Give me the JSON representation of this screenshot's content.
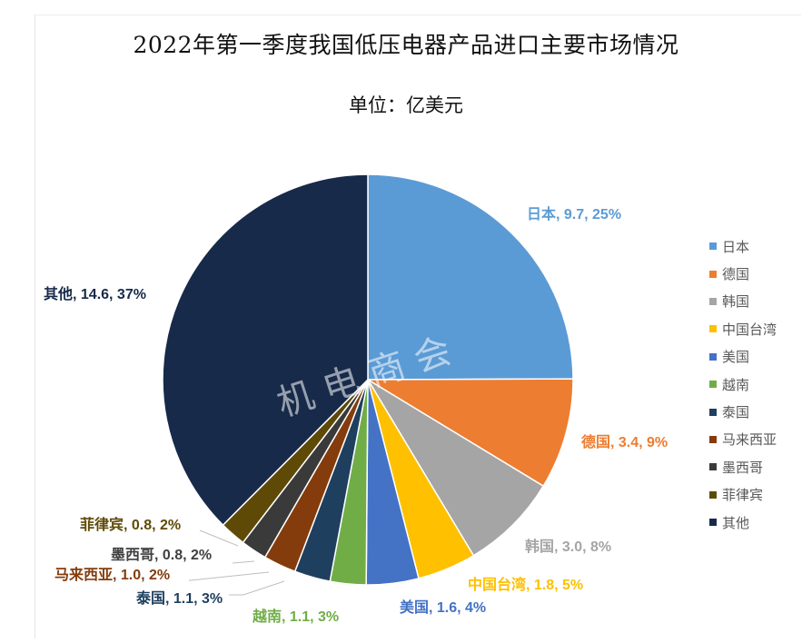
{
  "chart_data": {
    "type": "pie",
    "title": "2022年第一季度我国低压电器产品进口主要市场情况",
    "subtitle": "单位：亿美元",
    "watermark": "机 电 商 会",
    "legend_position": "right",
    "slices": [
      {
        "name": "日本",
        "value": 9.7,
        "percent": "25%",
        "color": "#5B9BD5",
        "label": "日本, 9.7, 25%"
      },
      {
        "name": "德国",
        "value": 3.4,
        "percent": "9%",
        "color": "#ED7D31",
        "label": "德国, 3.4, 9%"
      },
      {
        "name": "韩国",
        "value": 3.0,
        "percent": "8%",
        "color": "#A5A5A5",
        "label": "韩国, 3.0, 8%"
      },
      {
        "name": "中国台湾",
        "value": 1.8,
        "percent": "5%",
        "color": "#FFC000",
        "label": "中国台湾, 1.8, 5%"
      },
      {
        "name": "美国",
        "value": 1.6,
        "percent": "4%",
        "color": "#4472C4",
        "label": "美国, 1.6, 4%"
      },
      {
        "name": "越南",
        "value": 1.1,
        "percent": "3%",
        "color": "#70AD47",
        "label": "越南, 1.1, 3%"
      },
      {
        "name": "泰国",
        "value": 1.1,
        "percent": "3%",
        "color": "#1F3F5F",
        "label": "泰国, 1.1, 3%"
      },
      {
        "name": "马来西亚",
        "value": 1.0,
        "percent": "2%",
        "color": "#843C0C",
        "label": "马来西亚, 1.0, 2%"
      },
      {
        "name": "墨西哥",
        "value": 0.8,
        "percent": "2%",
        "color": "#3A3A3A",
        "label": "墨西哥, 0.8, 2%"
      },
      {
        "name": "菲律宾",
        "value": 0.8,
        "percent": "2%",
        "color": "#5E4A06",
        "label": "菲律宾, 0.8, 2%"
      },
      {
        "name": "其他",
        "value": 14.6,
        "percent": "37%",
        "color": "#172A4A",
        "label": "其他, 14.6, 37%"
      }
    ]
  }
}
